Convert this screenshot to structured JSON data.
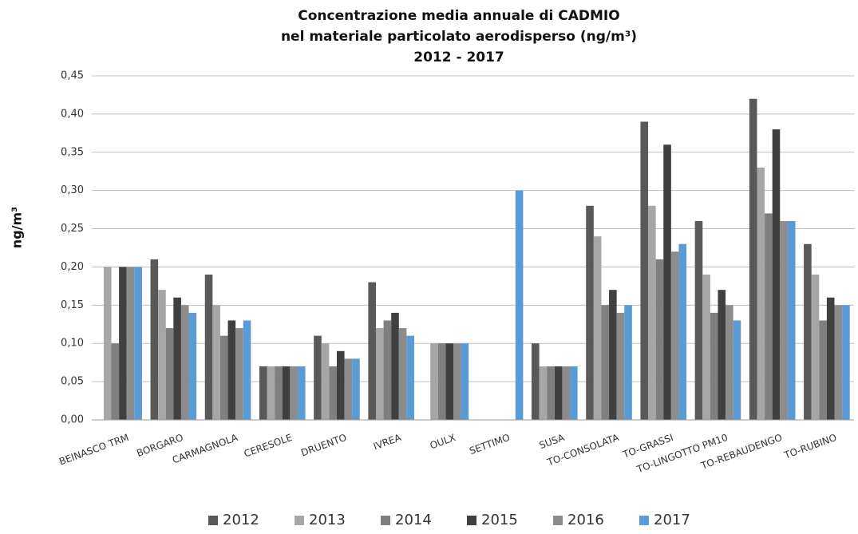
{
  "chart_data": {
    "type": "bar",
    "title": [
      "Concentrazione media annuale di CADMIO",
      "nel materiale particolato aerodisperso (ng/m³)",
      "2012 - 2017"
    ],
    "y_label": "ng/m³",
    "categories": [
      "BEINASCO TRM",
      "BORGARO",
      "CARMAGNOLA",
      "CERESOLE",
      "DRUENTO",
      "IVREA",
      "OULX",
      "SETTIMO",
      "SUSA",
      "TO-CONSOLATA",
      "TO-GRASSI",
      "TO-LINGOTTO  PM10",
      "TO-REBAUDENGO",
      "TO-RUBINO"
    ],
    "series": [
      {
        "name": "2012",
        "color": "#595959",
        "values": [
          null,
          0.21,
          0.19,
          0.07,
          0.11,
          0.18,
          null,
          null,
          0.1,
          0.28,
          0.39,
          0.26,
          0.42,
          0.23
        ]
      },
      {
        "name": "2013",
        "color": "#a6a6a6",
        "values": [
          0.2,
          0.17,
          0.15,
          0.07,
          0.1,
          0.12,
          0.1,
          null,
          0.07,
          0.24,
          0.28,
          0.19,
          0.33,
          0.19
        ]
      },
      {
        "name": "2014",
        "color": "#7f7f7f",
        "values": [
          0.1,
          0.12,
          0.11,
          0.07,
          0.07,
          0.13,
          0.1,
          null,
          0.07,
          0.15,
          0.21,
          0.14,
          0.27,
          0.13
        ]
      },
      {
        "name": "2015",
        "color": "#404040",
        "values": [
          0.2,
          0.16,
          0.13,
          0.07,
          0.09,
          0.14,
          0.1,
          null,
          0.07,
          0.17,
          0.36,
          0.17,
          0.38,
          0.16
        ]
      },
      {
        "name": "2016",
        "color": "#8c8c8c",
        "values": [
          0.2,
          0.15,
          0.12,
          0.07,
          0.08,
          0.12,
          0.1,
          null,
          0.07,
          0.14,
          0.22,
          0.15,
          0.26,
          0.15
        ]
      },
      {
        "name": "2017",
        "color": "#5b9bd5",
        "values": [
          0.2,
          0.14,
          0.13,
          0.07,
          0.08,
          0.11,
          0.1,
          0.3,
          0.07,
          0.15,
          0.23,
          0.13,
          0.26,
          0.15
        ]
      }
    ],
    "ylim": [
      0,
      0.45
    ],
    "yticks": [
      {
        "value": 0,
        "label": "0,00"
      },
      {
        "value": 0.05,
        "label": "0,05"
      },
      {
        "value": 0.1,
        "label": "0,10"
      },
      {
        "value": 0.15,
        "label": "0,15"
      },
      {
        "value": 0.2,
        "label": "0,20"
      },
      {
        "value": 0.25,
        "label": "0,25"
      },
      {
        "value": 0.3,
        "label": "0,30"
      },
      {
        "value": 0.35,
        "label": "0,35"
      },
      {
        "value": 0.4,
        "label": "0,40"
      },
      {
        "value": 0.45,
        "label": "0,45"
      }
    ],
    "grid": true,
    "legend": "bottom"
  }
}
